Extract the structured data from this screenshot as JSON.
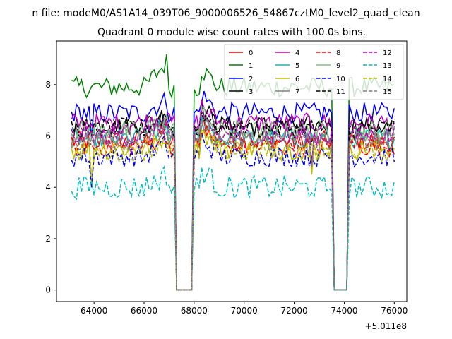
{
  "chart_data": {
    "type": "line",
    "suptitle": "n file: modeM0/AS1A14_039T06_9000006526_54867cztM0_level2_quad_clean",
    "title": "Quadrant 0 module wise count rates with 100.0s bins.",
    "xlabel": "",
    "ylabel": "",
    "x_offset_label": "+5.011e8",
    "x_offset": 501100000,
    "xlim": [
      62500,
      76500
    ],
    "ylim": [
      -0.45,
      9.7
    ],
    "x_range": [
      63100,
      76000
    ],
    "gaps": [
      [
        67000,
        67200,
        68000,
        68200
      ],
      [
        73400,
        73500,
        74200,
        74300
      ]
    ],
    "xticks": [
      64000,
      66000,
      68000,
      70000,
      72000,
      74000,
      76000
    ],
    "xtick_labels": [
      "64000",
      "66000",
      "68000",
      "70000",
      "72000",
      "74000",
      "76000"
    ],
    "yticks": [
      0,
      2,
      4,
      6,
      8
    ],
    "ytick_labels": [
      "0",
      "2",
      "4",
      "6",
      "8"
    ],
    "grid": false,
    "legend_position": "upper-right",
    "series": [
      {
        "name": "0",
        "color": "#ff0000",
        "dash": "solid",
        "mean": 5.8
      },
      {
        "name": "1",
        "color": "#008000",
        "dash": "solid",
        "mean": 7.9
      },
      {
        "name": "2",
        "color": "#0000ff",
        "dash": "solid",
        "mean": 6.9
      },
      {
        "name": "3",
        "color": "#000000",
        "dash": "solid",
        "mean": 6.4
      },
      {
        "name": "4",
        "color": "#bf00bf",
        "dash": "solid",
        "mean": 6.5
      },
      {
        "name": "5",
        "color": "#00bfbf",
        "dash": "solid",
        "mean": 5.9
      },
      {
        "name": "6",
        "color": "#bfbf00",
        "dash": "solid",
        "mean": 5.5
      },
      {
        "name": "7",
        "color": "#808080",
        "dash": "solid",
        "mean": 6.0
      },
      {
        "name": "8",
        "color": "#ff0000",
        "dash": "dashed",
        "mean": 5.6
      },
      {
        "name": "9",
        "color": "#80c080",
        "dash": "solid",
        "mean": 6.2
      },
      {
        "name": "10",
        "color": "#0000ff",
        "dash": "dashed",
        "mean": 5.2
      },
      {
        "name": "11",
        "color": "#000000",
        "dash": "dashed",
        "mean": 6.3
      },
      {
        "name": "12",
        "color": "#bf00bf",
        "dash": "dashed",
        "mean": 6.0
      },
      {
        "name": "13",
        "color": "#00bfbf",
        "dash": "dashed",
        "mean": 4.0
      },
      {
        "name": "14",
        "color": "#bfbf00",
        "dash": "dashed",
        "mean": 5.4
      },
      {
        "name": "15",
        "color": "#808080",
        "dash": "dashed",
        "mean": 5.8
      }
    ]
  }
}
